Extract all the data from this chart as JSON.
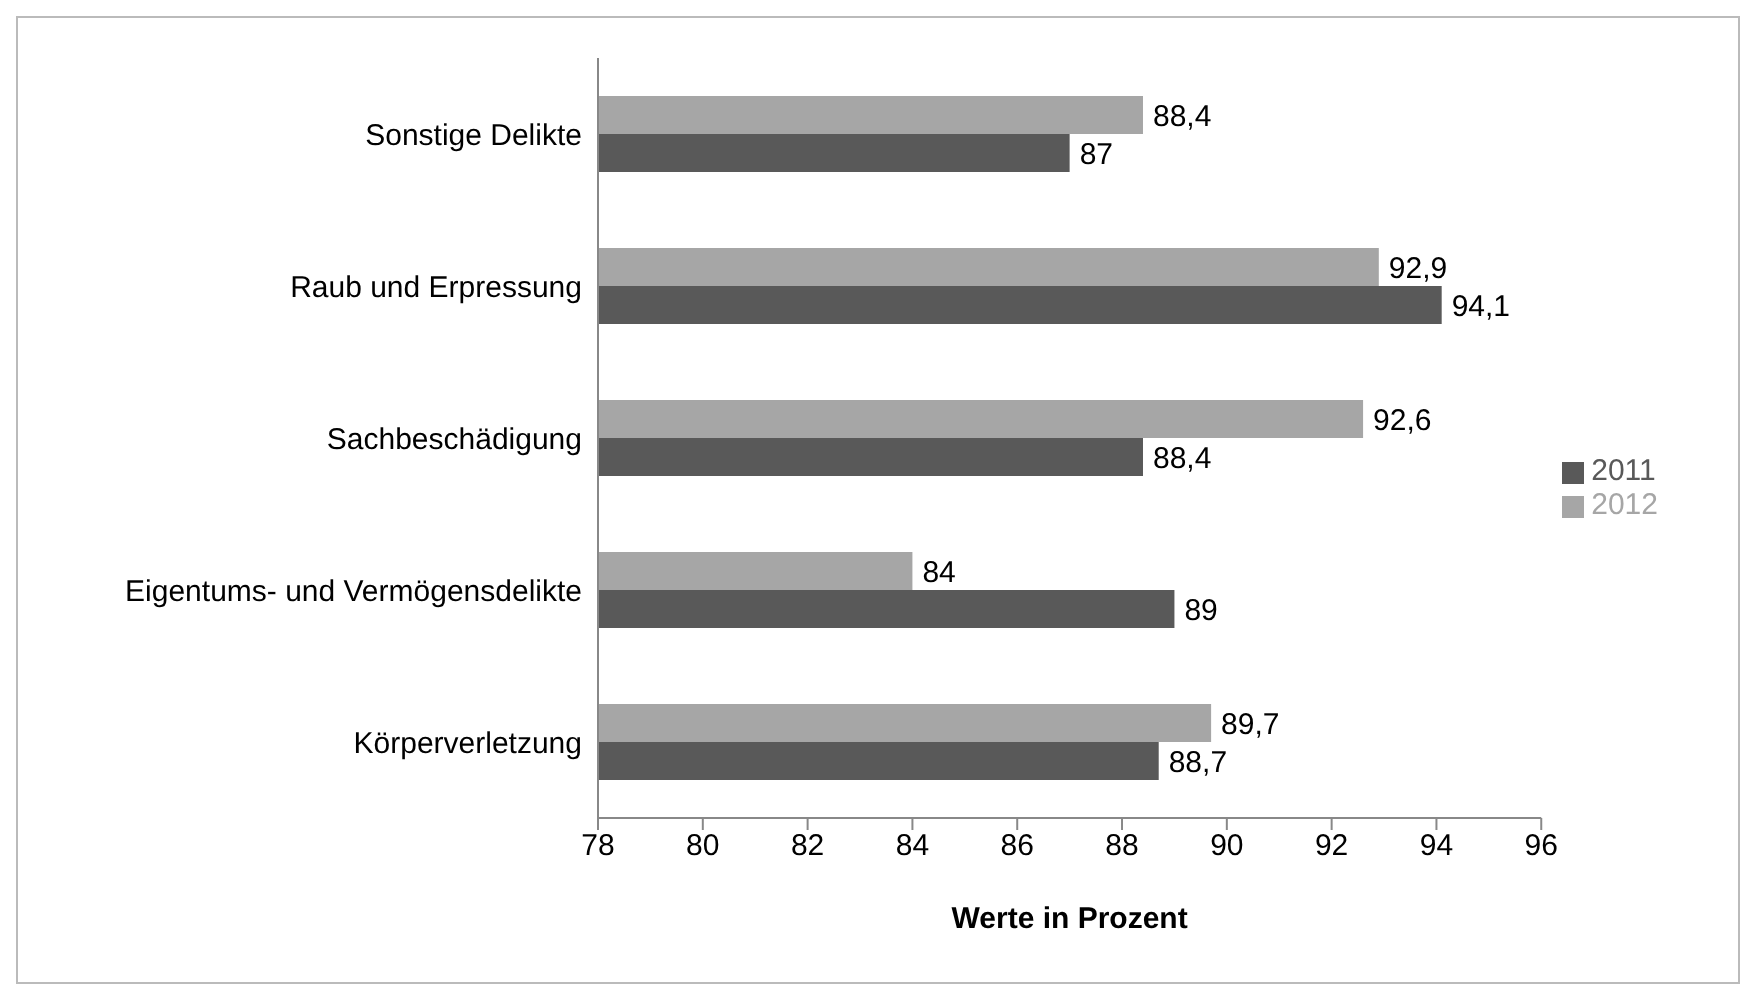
{
  "chart_data": {
    "type": "bar",
    "orientation": "horizontal",
    "xlabel": "Werte in Prozent",
    "categories": [
      "Sonstige Delikte",
      "Raub und Erpressung",
      "Sachbeschädigung",
      "Eigentums- und Vermögensdelikte",
      "Körperverletzung"
    ],
    "series": [
      {
        "name": "2012",
        "color": "#a6a6a6",
        "values": [
          88.4,
          92.9,
          92.6,
          84,
          89.7
        ],
        "value_labels": [
          "88,4",
          "92,9",
          "92,6",
          "84",
          "89,7"
        ]
      },
      {
        "name": "2011",
        "color": "#595959",
        "values": [
          87,
          94.1,
          88.4,
          89,
          88.7
        ],
        "value_labels": [
          "87",
          "94,1",
          "88,4",
          "89",
          "88,7"
        ]
      }
    ],
    "xlim": [
      78,
      96
    ],
    "xticks": [
      78,
      80,
      82,
      84,
      86,
      88,
      90,
      92,
      94,
      96
    ],
    "grid": false,
    "legend": "right"
  }
}
